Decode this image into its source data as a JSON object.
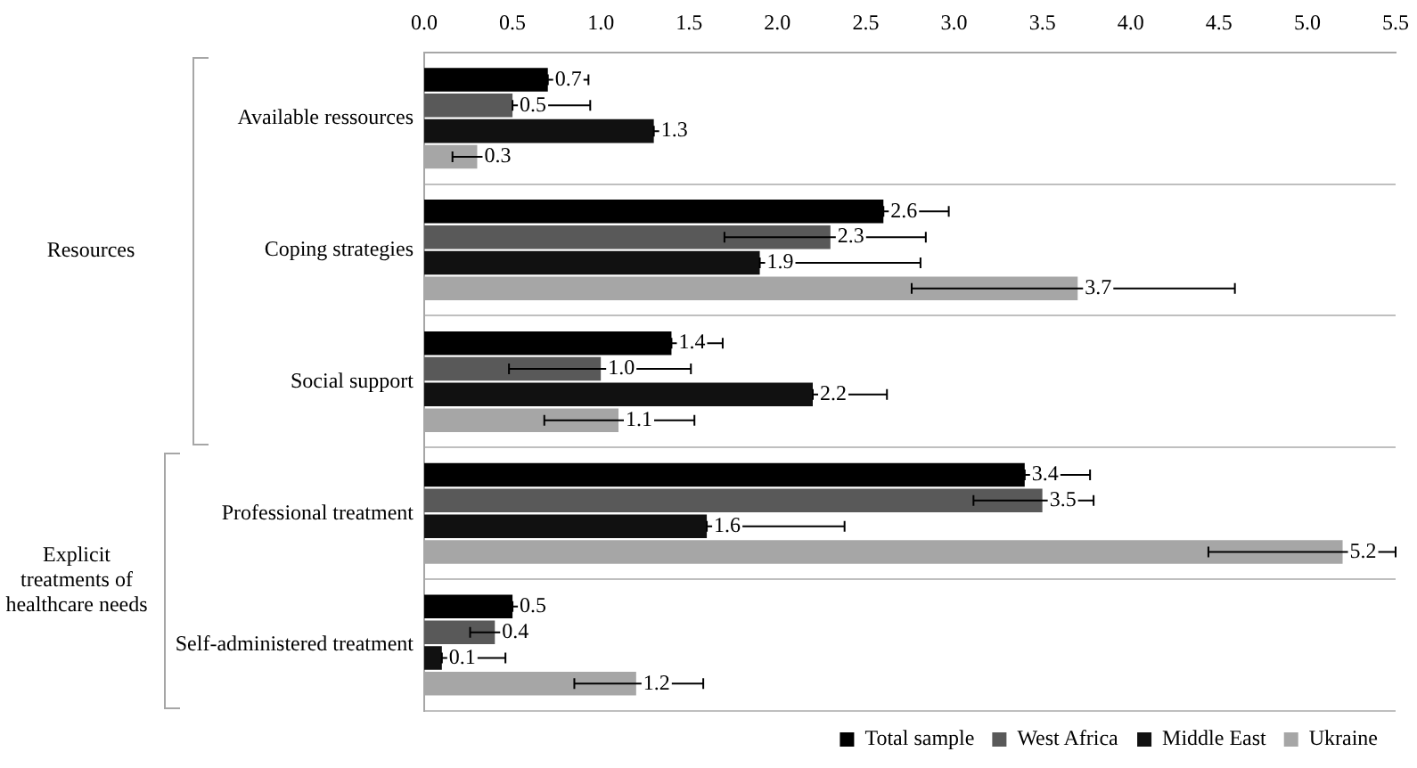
{
  "chart_data": {
    "type": "bar",
    "orientation": "horizontal",
    "categories": [
      "Available ressources",
      "Coping strategies",
      "Social support",
      "Professional treatment",
      "Self-administered treatment"
    ],
    "series": [
      {
        "name": "Total sample",
        "color": "#000000",
        "values": [
          0.7,
          2.6,
          1.4,
          3.4,
          0.5
        ],
        "value_labels": [
          "0.7",
          "2.6",
          "1.4",
          "3.4",
          "0.5"
        ],
        "errors": [
          [
            0.7,
            0.93
          ],
          [
            2.6,
            2.97
          ],
          [
            1.4,
            1.69
          ],
          [
            3.4,
            3.77
          ],
          [
            0.5,
            0.68
          ]
        ]
      },
      {
        "name": "West Africa",
        "color": "#595959",
        "values": [
          0.5,
          2.3,
          1.0,
          3.5,
          0.4
        ],
        "value_labels": [
          "0.5",
          "2.3",
          "1.0",
          "3.5",
          "0.4"
        ],
        "errors": [
          [
            0.5,
            0.94
          ],
          [
            1.7,
            2.84
          ],
          [
            0.48,
            1.51
          ],
          [
            3.11,
            3.79
          ],
          [
            0.26,
            0.45
          ]
        ]
      },
      {
        "name": "Middle East",
        "color": "#111111",
        "values": [
          1.3,
          1.9,
          2.2,
          1.6,
          0.1
        ],
        "value_labels": [
          "1.3",
          "1.9",
          "2.2",
          "1.6",
          "0.1"
        ],
        "errors": [
          [
            1.3,
            1.46
          ],
          [
            1.9,
            2.81
          ],
          [
            2.2,
            2.62
          ],
          [
            1.6,
            2.38
          ],
          [
            0.1,
            0.46
          ]
        ]
      },
      {
        "name": "Ukraine",
        "color": "#a6a6a6",
        "values": [
          0.3,
          3.7,
          1.1,
          5.2,
          1.2
        ],
        "value_labels": [
          "0.3",
          "3.7",
          "1.1",
          "5.2",
          "1.2"
        ],
        "errors": [
          [
            0.16,
            0.49
          ],
          [
            2.76,
            4.59
          ],
          [
            0.68,
            1.53
          ],
          [
            4.44,
            5.5
          ],
          [
            0.85,
            1.58
          ]
        ]
      }
    ],
    "xlim": [
      0,
      5.5
    ],
    "xticks": [
      {
        "value": 0,
        "label": "0.0"
      },
      {
        "value": 0.5,
        "label": "0.5"
      },
      {
        "value": 1,
        "label": "1.0"
      },
      {
        "value": 1.5,
        "label": "1.5"
      },
      {
        "value": 2,
        "label": "2.0"
      },
      {
        "value": 2.5,
        "label": "2.5"
      },
      {
        "value": 3,
        "label": "3.0"
      },
      {
        "value": 3.5,
        "label": "3.5"
      },
      {
        "value": 4,
        "label": "4.0"
      },
      {
        "value": 4.5,
        "label": "4.5"
      },
      {
        "value": 5,
        "label": "5.0"
      },
      {
        "value": 5.5,
        "label": "5.5"
      }
    ],
    "annotations": [
      "Resources",
      "Explicit treatments of healthcare needs"
    ],
    "grid": "y",
    "legend": "bottom right"
  }
}
